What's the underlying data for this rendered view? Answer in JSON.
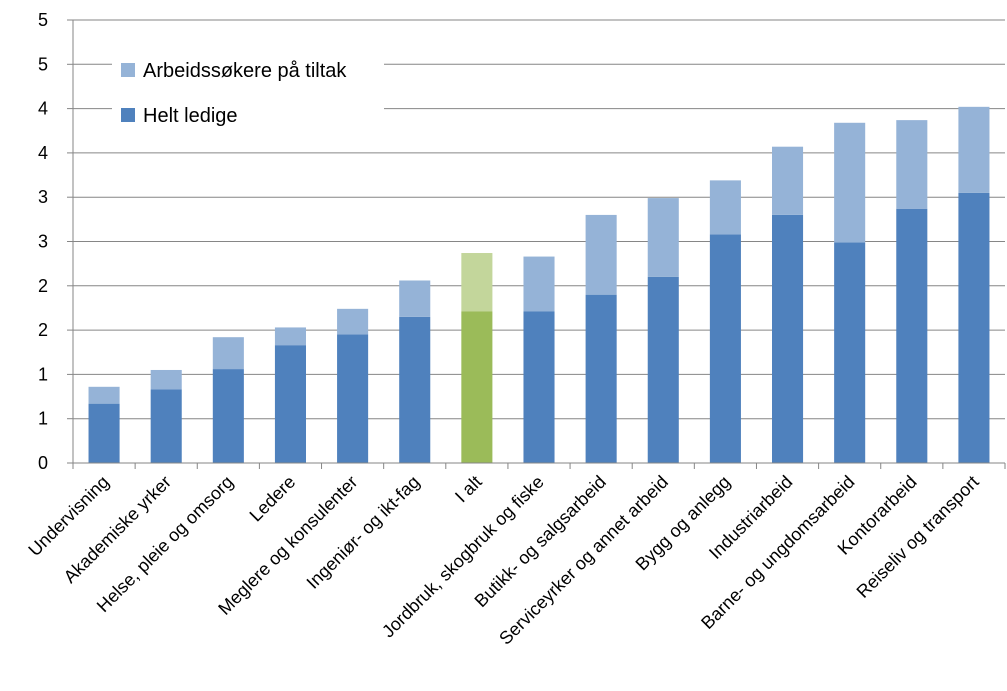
{
  "chart_data": {
    "type": "bar",
    "stacked": true,
    "title": "",
    "xlabel": "",
    "ylabel": "",
    "ylim": [
      0,
      5
    ],
    "yticks": [
      0,
      0.5,
      1,
      1.5,
      2,
      2.5,
      3,
      3.5,
      4,
      4.5,
      5
    ],
    "ytick_labels": [
      "0",
      "1",
      "1",
      "2",
      "2",
      "3",
      "3",
      "4",
      "4",
      "5",
      "5"
    ],
    "grid": "horizontal",
    "legend_position": "top-left",
    "categories": [
      "Undervisning",
      "Akademiske yrker",
      "Helse, pleie og omsorg",
      "Ledere",
      "Meglere og konsulenter",
      "Ingeniør- og ikt-fag",
      "I  alt",
      "Jordbruk, skogbruk og fiske",
      "Butikk- og salgsarbeid",
      "Serviceyrker og annet arbeid",
      "Bygg og anlegg",
      "Industriarbeid",
      "Barne- og ungdomsarbeid",
      "Kontorarbeid",
      "Reiseliv og transport"
    ],
    "highlight_category": "I  alt",
    "series": [
      {
        "name": "Helt ledige",
        "color": "#4f81bd",
        "highlight_color": "#9bbb59",
        "values": [
          0.67,
          0.83,
          1.06,
          1.33,
          1.45,
          1.65,
          1.71,
          1.71,
          1.9,
          2.1,
          2.58,
          2.8,
          2.49,
          2.87,
          3.05
        ]
      },
      {
        "name": "Arbeidssøkere på tiltak",
        "color": "#95b3d7",
        "highlight_color": "#c3d69b",
        "values": [
          0.19,
          0.22,
          0.36,
          0.2,
          0.29,
          0.41,
          0.66,
          0.62,
          0.9,
          0.89,
          0.61,
          0.77,
          1.35,
          1.0,
          0.97
        ]
      }
    ],
    "legend": [
      {
        "label": "Arbeidssøkere på tiltak",
        "color": "#95b3d7"
      },
      {
        "label": "Helt ledige",
        "color": "#4f81bd"
      }
    ]
  }
}
